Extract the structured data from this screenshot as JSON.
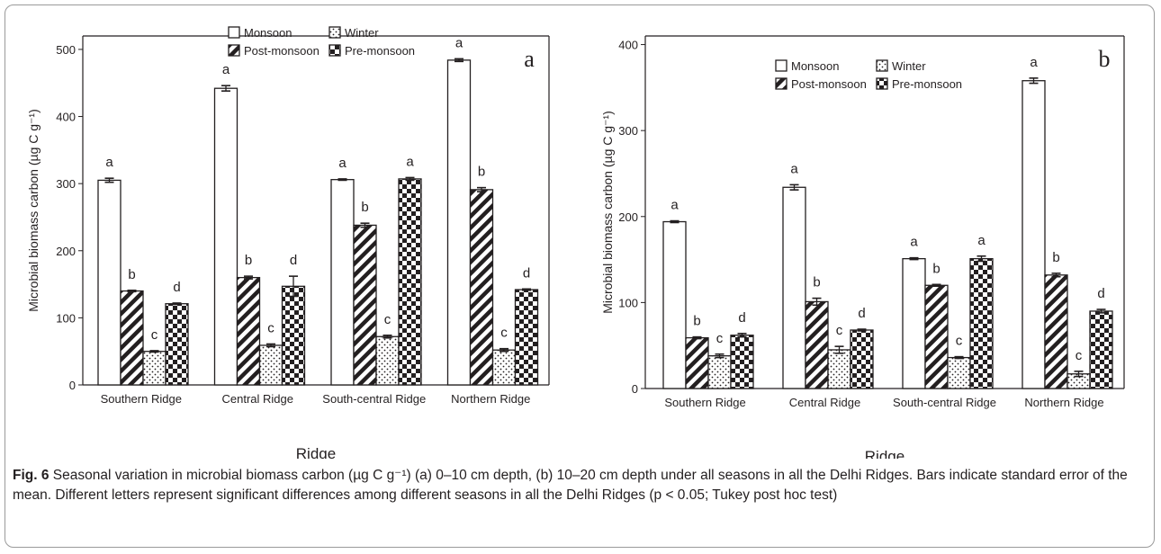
{
  "caption": {
    "label": "Fig. 6",
    "text": "Seasonal variation in microbial biomass carbon (µg C g⁻¹) (a) 0–10 cm depth, (b) 10–20 cm depth under all seasons in all the Delhi Ridges. Bars indicate standard error of the mean. Different letters represent significant differences among different seasons in all the Delhi Ridges (p < 0.05; Tukey post hoc test)"
  },
  "chart_data": [
    {
      "type": "bar",
      "panel": "a",
      "xlabel": "Ridge",
      "ylabel": "Microbial biomass carbon (µg C g⁻¹)",
      "ylim": [
        0,
        520
      ],
      "yticks": [
        0,
        100,
        200,
        300,
        400,
        500
      ],
      "categories": [
        "Southern Ridge",
        "Central Ridge",
        "South-central Ridge",
        "Northern Ridge"
      ],
      "legend_position": "top-center",
      "series": [
        {
          "name": "Monsoon",
          "pattern": "white",
          "values": [
            305,
            442,
            306,
            484
          ],
          "errors": [
            3,
            4,
            1,
            2
          ],
          "letters": [
            "a",
            "a",
            "a",
            "a"
          ]
        },
        {
          "name": "Post-monsoon",
          "pattern": "diagonal",
          "values": [
            140,
            160,
            238,
            291
          ],
          "errors": [
            1,
            2,
            3,
            3
          ],
          "letters": [
            "b",
            "b",
            "b",
            "b"
          ]
        },
        {
          "name": "Winter",
          "pattern": "dots",
          "values": [
            50,
            59,
            72,
            52
          ],
          "errors": [
            1,
            2,
            2,
            2
          ],
          "letters": [
            "c",
            "c",
            "c",
            "c"
          ]
        },
        {
          "name": "Pre-monsoon",
          "pattern": "checker",
          "values": [
            121,
            147,
            307,
            142
          ],
          "errors": [
            1,
            15,
            2,
            1
          ],
          "letters": [
            "d",
            "d",
            "a",
            "d"
          ]
        }
      ]
    },
    {
      "type": "bar",
      "panel": "b",
      "xlabel": "Ridge",
      "ylabel": "Microbial biomass carbon (µg C g⁻¹)",
      "ylim": [
        0,
        410
      ],
      "yticks": [
        0,
        100,
        200,
        300,
        400
      ],
      "categories": [
        "Southern Ridge",
        "Central Ridge",
        "South-central Ridge",
        "Northern Ridge"
      ],
      "legend_position": "top-center",
      "series": [
        {
          "name": "Monsoon",
          "pattern": "white",
          "values": [
            194,
            234,
            151,
            358
          ],
          "errors": [
            1,
            3,
            1,
            3
          ],
          "letters": [
            "a",
            "a",
            "a",
            "a"
          ]
        },
        {
          "name": "Post-monsoon",
          "pattern": "diagonal",
          "values": [
            59,
            101,
            120,
            132
          ],
          "errors": [
            1,
            4,
            1,
            2
          ],
          "letters": [
            "b",
            "b",
            "b",
            "b"
          ]
        },
        {
          "name": "Winter",
          "pattern": "dots",
          "values": [
            38,
            45,
            36,
            17
          ],
          "errors": [
            2,
            4,
            1,
            3
          ],
          "letters": [
            "c",
            "c",
            "c",
            "c"
          ]
        },
        {
          "name": "Pre-monsoon",
          "pattern": "checker",
          "values": [
            62,
            68,
            151,
            90
          ],
          "errors": [
            2,
            1,
            3,
            2
          ],
          "letters": [
            "d",
            "d",
            "a",
            "d"
          ]
        }
      ]
    }
  ],
  "colors": {
    "ink": "#231f20",
    "frame": "#9a9a9a"
  }
}
